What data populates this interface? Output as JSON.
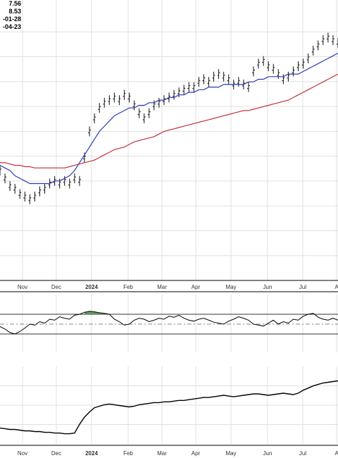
{
  "info_box": [
    "7.56",
    "8.53",
    "-01-28",
    "-04-23"
  ],
  "chart_data": [
    {
      "type": "ohlc",
      "panel": "price",
      "x_axis_labels": [
        "Nov",
        "Dec",
        "2024",
        "Feb",
        "Mar",
        "Apr",
        "May",
        "Jun",
        "Jul",
        "A"
      ],
      "x_axis_label_positions_month_index": [
        0,
        1,
        2,
        3,
        4,
        5,
        6,
        7,
        8,
        9
      ],
      "ylim": [
        0,
        100
      ],
      "grid": true,
      "series": [
        {
          "kind": "price_close",
          "color": "#000000",
          "values": [
            40,
            37,
            34,
            33,
            31,
            30,
            29,
            30,
            32,
            33,
            35,
            36,
            35,
            36,
            35,
            37,
            36,
            45,
            55,
            60,
            64,
            66,
            67,
            68,
            67,
            69,
            68,
            65,
            62,
            60,
            62,
            65,
            66,
            67,
            68,
            69,
            70,
            71,
            72,
            72,
            74,
            75,
            74,
            76,
            77,
            76,
            75,
            73,
            74,
            73,
            72,
            78,
            81,
            82,
            80,
            79,
            77,
            75,
            76,
            78,
            80,
            81,
            83,
            86,
            88,
            90,
            91,
            90,
            89
          ]
        },
        {
          "kind": "moving_average_short",
          "color": "#2a3bb5",
          "values": [
            42,
            41,
            40,
            38,
            37,
            36,
            35,
            35,
            35,
            35,
            35,
            36,
            36,
            37,
            38,
            40,
            43,
            46,
            49,
            52,
            55,
            57,
            59,
            61,
            62,
            63,
            64,
            64,
            65,
            65,
            66,
            66,
            67,
            67,
            68,
            68,
            69,
            69,
            70,
            70,
            71,
            71,
            72,
            72,
            72,
            73,
            73,
            73,
            73,
            73,
            74,
            74,
            75,
            75,
            76,
            76,
            76,
            76,
            77,
            77,
            77,
            78,
            79,
            80,
            81,
            82,
            83,
            84,
            85
          ]
        },
        {
          "kind": "moving_average_long",
          "color": "#c0303a",
          "values": [
            43,
            43,
            42.5,
            42,
            42,
            41.5,
            41.5,
            41,
            41,
            41,
            41,
            41,
            41,
            41,
            41.5,
            42,
            42.5,
            43,
            43.5,
            44,
            45,
            46,
            47,
            48,
            48.5,
            49,
            50,
            51,
            51.5,
            52,
            52.5,
            53,
            54,
            55,
            55.5,
            56,
            56.5,
            57,
            57.5,
            58,
            58.5,
            59,
            59.5,
            60,
            60.5,
            61,
            61.5,
            62,
            62.5,
            63,
            63,
            63.5,
            64,
            64.5,
            65,
            65.5,
            66,
            66.5,
            67,
            68,
            69,
            70,
            71,
            72,
            73,
            74,
            75,
            76,
            77
          ]
        }
      ]
    },
    {
      "type": "line",
      "panel": "oscillator",
      "ylim": [
        0,
        100
      ],
      "reference_lines": [
        30,
        50,
        70
      ],
      "fill_above": 70,
      "fill_color": "#4c8a4c",
      "series": [
        {
          "kind": "oscillator",
          "color": "#000000",
          "values": [
            45,
            40,
            33,
            30,
            35,
            42,
            50,
            48,
            55,
            52,
            60,
            58,
            65,
            62,
            60,
            68,
            70,
            74,
            76,
            75,
            73,
            72,
            70,
            60,
            55,
            48,
            50,
            58,
            62,
            60,
            55,
            58,
            62,
            60,
            66,
            64,
            68,
            62,
            58,
            56,
            60,
            62,
            58,
            54,
            52,
            50,
            56,
            60,
            65,
            62,
            58,
            50,
            48,
            46,
            52,
            58,
            50,
            55,
            52,
            60,
            58,
            66,
            70,
            72,
            64,
            60,
            58,
            62,
            58
          ]
        }
      ]
    },
    {
      "type": "line",
      "panel": "cumulative",
      "ylim": [
        0,
        100
      ],
      "series": [
        {
          "kind": "cumulative_line",
          "color": "#000000",
          "values": [
            20,
            19,
            18,
            18,
            17,
            16,
            16,
            15,
            15,
            14,
            14,
            13,
            13,
            12,
            12,
            13,
            25,
            35,
            42,
            48,
            50,
            52,
            53,
            52,
            51,
            50,
            49,
            50,
            52,
            53,
            54,
            55,
            55,
            56,
            56,
            57,
            58,
            58,
            59,
            60,
            61,
            62,
            62,
            63,
            64,
            65,
            64,
            63,
            64,
            65,
            66,
            67,
            67,
            66,
            65,
            66,
            67,
            68,
            67,
            66,
            68,
            72,
            75,
            78,
            80,
            82,
            83,
            84,
            85
          ]
        }
      ]
    }
  ]
}
